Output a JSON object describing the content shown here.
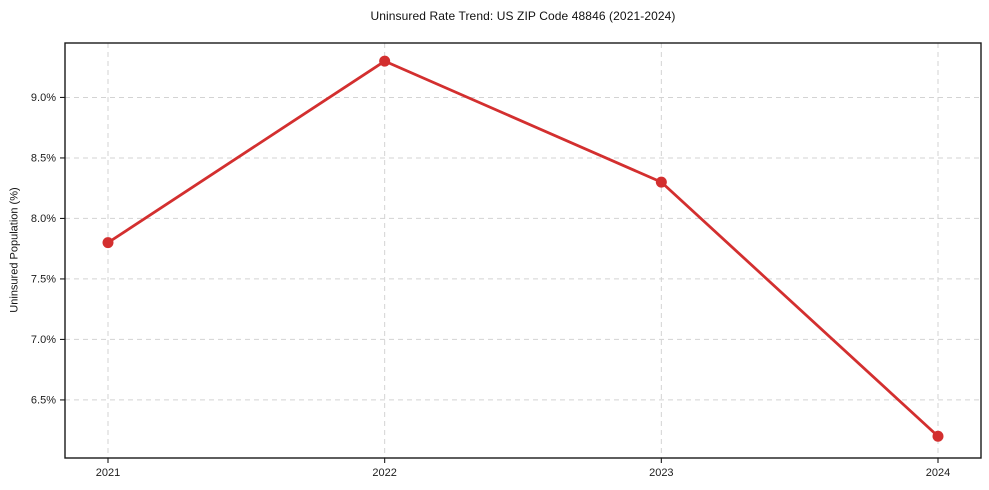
{
  "chart_data": {
    "type": "line",
    "title": "Uninsured Rate Trend: US ZIP Code 48846 (2021-2024)",
    "xlabel": "",
    "ylabel": "Uninsured Population (%)",
    "categories": [
      "2021",
      "2022",
      "2023",
      "2024"
    ],
    "series": [
      {
        "values": [
          7.8,
          9.3,
          8.3,
          6.2
        ]
      }
    ],
    "yticks": [
      6.5,
      7.0,
      7.5,
      8.0,
      8.5,
      9.0
    ],
    "ytick_labels": [
      "6.5%",
      "7.0%",
      "7.5%",
      "8.0%",
      "8.5%",
      "9.0%"
    ],
    "ylim": [
      6.02,
      9.45
    ],
    "grid": true,
    "legend": "none",
    "line_color": "#d32f2f",
    "marker_color": "#d32f2f",
    "grid_color": "#d3d3d3",
    "axis_color": "#1a1a1a",
    "text_color": "#1c1c1c",
    "background_color": "#ffffff"
  }
}
